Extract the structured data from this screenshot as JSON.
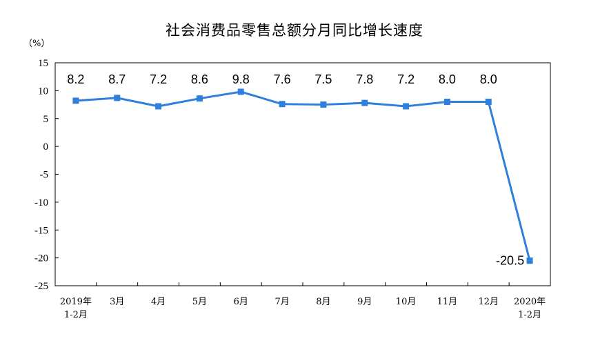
{
  "chart_data": {
    "type": "line",
    "title": "社会消费品零售总额分月同比增长速度",
    "unit": "（%）",
    "ylim": [
      -25,
      15
    ],
    "yticks": [
      "15",
      "10",
      "5",
      "0",
      "-5",
      "-10",
      "-15",
      "-20",
      "-25"
    ],
    "ytick_values": [
      15,
      10,
      5,
      0,
      -5,
      -10,
      -15,
      -20,
      -25
    ],
    "categories": [
      [
        "2019年",
        "1-2月"
      ],
      [
        "3月"
      ],
      [
        "4月"
      ],
      [
        "5月"
      ],
      [
        "6月"
      ],
      [
        "7月"
      ],
      [
        "8月"
      ],
      [
        "9月"
      ],
      [
        "10月"
      ],
      [
        "11月"
      ],
      [
        "12月"
      ],
      [
        "2020年",
        "1-2月"
      ]
    ],
    "series": [
      {
        "values": [
          8.2,
          8.7,
          7.2,
          8.6,
          9.8,
          7.6,
          7.5,
          7.8,
          7.2,
          8.0,
          8.0,
          -20.5
        ],
        "labels": [
          "8.2",
          "8.7",
          "7.2",
          "8.6",
          "9.8",
          "7.6",
          "7.5",
          "7.8",
          "7.2",
          "8.0",
          "8.0",
          "-20.5"
        ]
      }
    ],
    "line_color": "#2f7fdc",
    "grid": false,
    "legend": "none"
  }
}
